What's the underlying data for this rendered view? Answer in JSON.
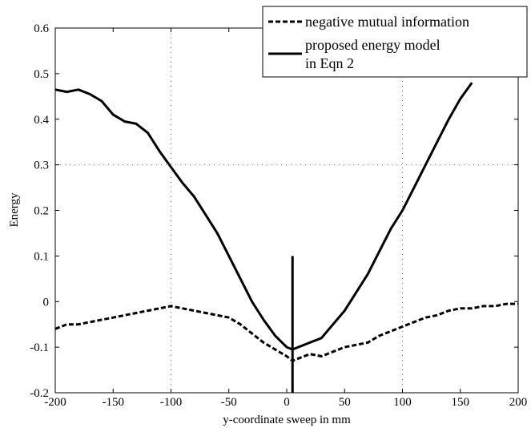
{
  "chart_data": {
    "type": "line",
    "title": "",
    "xlabel": "y-coordinate sweep in mm",
    "ylabel": "Energy",
    "xlim": [
      -200,
      200
    ],
    "ylim": [
      -0.2,
      0.6
    ],
    "x_ticks": [
      -200,
      -150,
      -100,
      -50,
      0,
      50,
      100,
      150,
      200
    ],
    "y_ticks": [
      -0.2,
      -0.1,
      0,
      0.1,
      0.2,
      0.3,
      0.4,
      0.5,
      0.6
    ],
    "x_tick_labels": [
      "-200",
      "-150",
      "-100",
      "-50",
      "0",
      "50",
      "100",
      "150",
      "200"
    ],
    "y_tick_labels": [
      "-0.2",
      "-0.1",
      "0",
      "0.1",
      "0.2",
      "0.3",
      "0.4",
      "0.5",
      "0.6"
    ],
    "grid": "dotted at x=-100, x=100 and y=0.3",
    "legend_position": "top-right",
    "legend": [
      {
        "label": "negative mutual information",
        "style": "dashed"
      },
      {
        "label_lines": [
          "proposed energy model",
          "in Eqn 2"
        ],
        "style": "solid"
      }
    ],
    "series": [
      {
        "name": "negative mutual information",
        "style": "dashed",
        "color": "#000000",
        "x": [
          -200,
          -190,
          -180,
          -170,
          -160,
          -150,
          -140,
          -130,
          -120,
          -110,
          -100,
          -90,
          -80,
          -70,
          -60,
          -50,
          -40,
          -30,
          -20,
          -10,
          0,
          5,
          10,
          20,
          30,
          40,
          50,
          60,
          70,
          80,
          90,
          100,
          110,
          120,
          130,
          140,
          150,
          160,
          170,
          180,
          190,
          200
        ],
        "y": [
          -0.06,
          -0.05,
          -0.05,
          -0.045,
          -0.04,
          -0.035,
          -0.03,
          -0.025,
          -0.02,
          -0.015,
          -0.01,
          -0.015,
          -0.02,
          -0.025,
          -0.03,
          -0.035,
          -0.05,
          -0.07,
          -0.09,
          -0.105,
          -0.12,
          -0.13,
          -0.125,
          -0.115,
          -0.12,
          -0.11,
          -0.1,
          -0.095,
          -0.09,
          -0.075,
          -0.065,
          -0.055,
          -0.045,
          -0.035,
          -0.03,
          -0.02,
          -0.015,
          -0.015,
          -0.01,
          -0.01,
          -0.005,
          -0.005
        ]
      },
      {
        "name": "proposed energy model in Eqn 2",
        "style": "solid",
        "color": "#000000",
        "x": [
          -200,
          -190,
          -180,
          -170,
          -160,
          -150,
          -140,
          -130,
          -120,
          -110,
          -100,
          -90,
          -80,
          -70,
          -60,
          -50,
          -40,
          -30,
          -20,
          -10,
          0,
          5,
          10,
          20,
          30,
          40,
          50,
          60,
          70,
          80,
          90,
          100,
          110,
          120,
          130,
          140,
          150,
          160
        ],
        "y": [
          0.465,
          0.46,
          0.465,
          0.455,
          0.44,
          0.41,
          0.395,
          0.39,
          0.37,
          0.33,
          0.295,
          0.26,
          0.23,
          0.19,
          0.15,
          0.1,
          0.05,
          0.0,
          -0.04,
          -0.075,
          -0.1,
          -0.105,
          -0.1,
          -0.09,
          -0.08,
          -0.05,
          -0.02,
          0.02,
          0.06,
          0.11,
          0.16,
          0.2,
          0.25,
          0.3,
          0.35,
          0.4,
          0.445,
          0.48
        ]
      }
    ],
    "marker_line": {
      "x": 5,
      "y_from": -0.2,
      "y_to": 0.1
    }
  }
}
